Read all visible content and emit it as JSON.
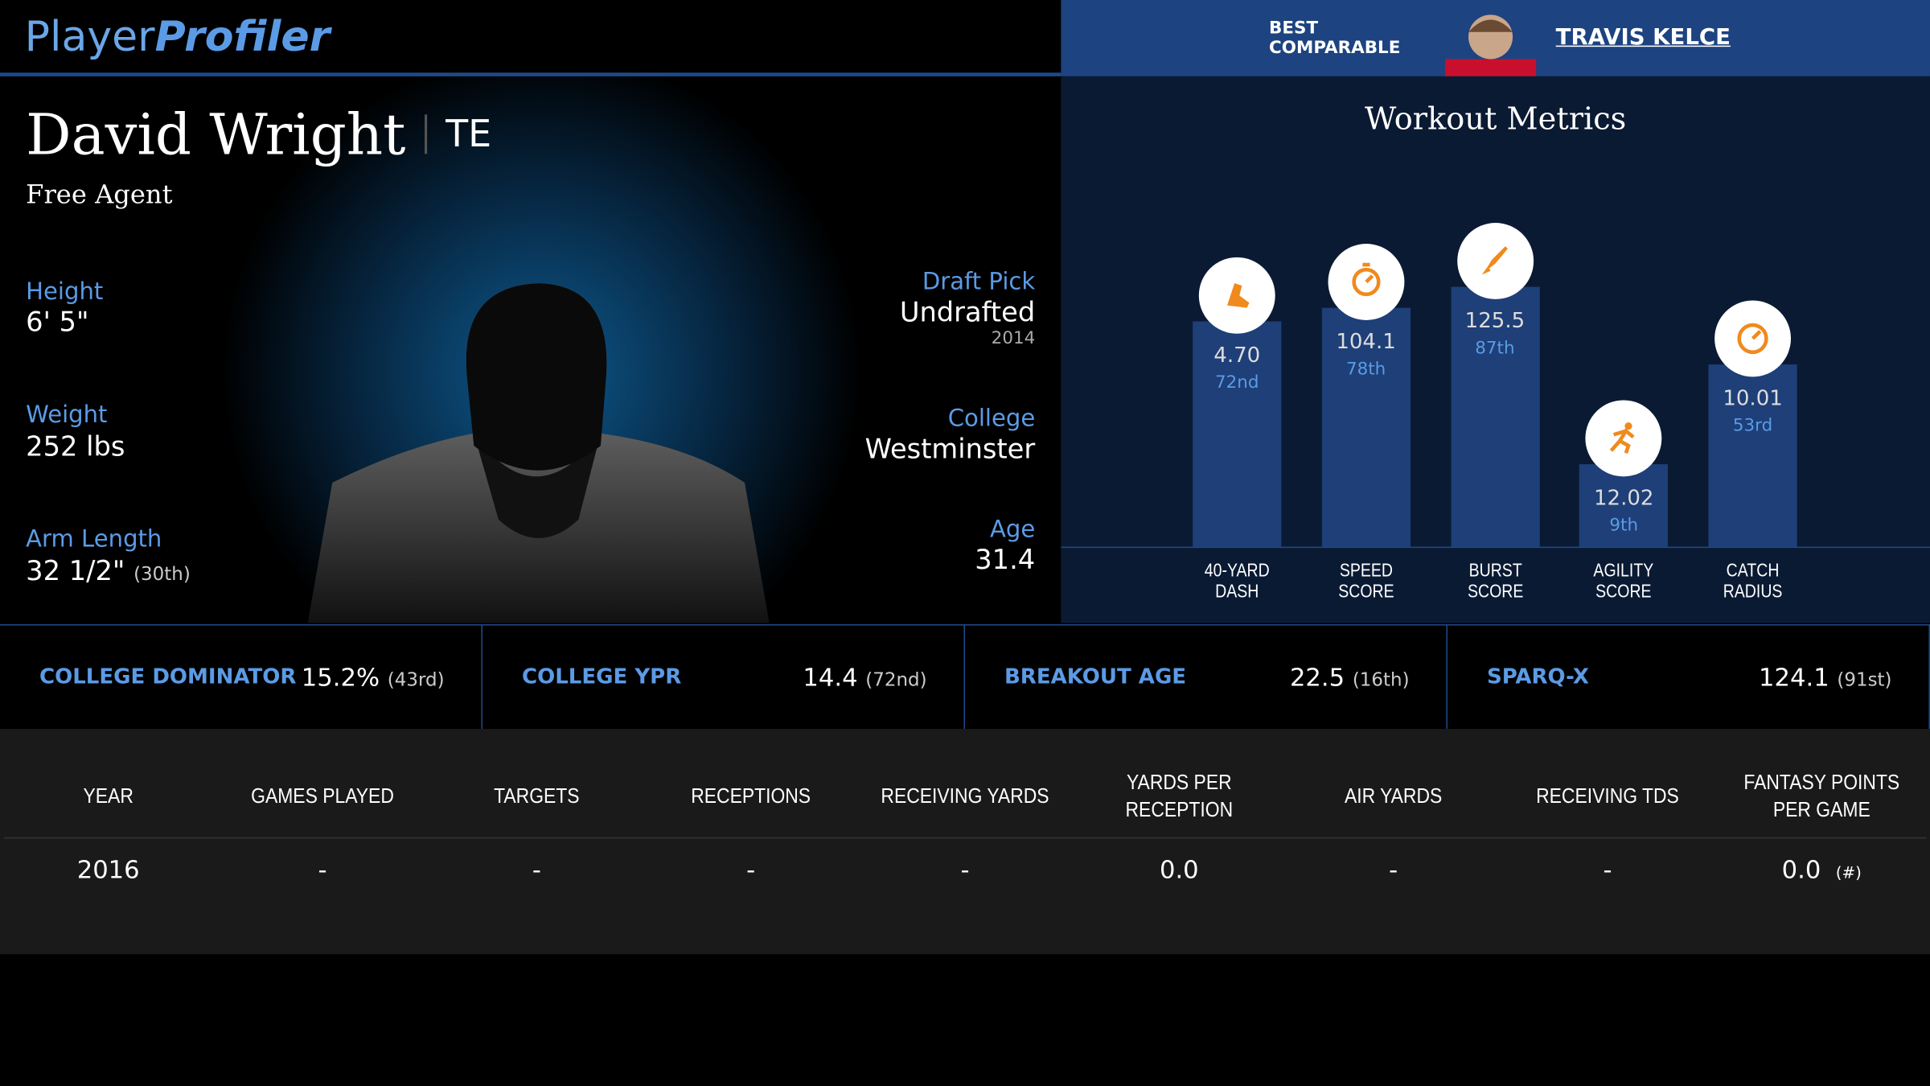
{
  "header": {
    "logo_a": "Player",
    "logo_b": "Profiler",
    "best_comparable_label": "BEST COMPARABLE",
    "best_comparable_name": "TRAVIS KELCE"
  },
  "player": {
    "name": "David Wright",
    "position": "TE",
    "status": "Free Agent"
  },
  "left_stats": [
    {
      "label": "Height",
      "value": "6' 5\""
    },
    {
      "label": "Weight",
      "value": "252 lbs"
    },
    {
      "label": "Arm Length",
      "value": "32 1/2\"",
      "rank": "(30th)"
    }
  ],
  "right_stats": [
    {
      "label": "Draft Pick",
      "value": "Undrafted",
      "sub": "2014"
    },
    {
      "label": "College",
      "value": "Westminster"
    },
    {
      "label": "Age",
      "value": "31.4"
    }
  ],
  "workout_metrics": {
    "title": "Workout Metrics",
    "items": [
      {
        "label": "40-YARD DASH",
        "value": "4.70",
        "percentile": 72,
        "percentile_label": "72nd"
      },
      {
        "label": "SPEED SCORE",
        "value": "104.1",
        "percentile": 78,
        "percentile_label": "78th"
      },
      {
        "label": "BURST SCORE",
        "value": "125.5",
        "percentile": 87,
        "percentile_label": "87th"
      },
      {
        "label": "AGILITY SCORE",
        "value": "12.02",
        "percentile": 9,
        "percentile_label": "9th"
      },
      {
        "label": "CATCH RADIUS",
        "value": "10.01",
        "percentile": 53,
        "percentile_label": "53rd"
      }
    ]
  },
  "key_metrics": [
    {
      "label": "COLLEGE DOMINATOR",
      "value": "15.2%",
      "rank": "(43rd)"
    },
    {
      "label": "COLLEGE YPR",
      "value": "14.4",
      "rank": "(72nd)"
    },
    {
      "label": "BREAKOUT AGE",
      "value": "22.5",
      "rank": "(16th)"
    },
    {
      "label": "SPARQ-X",
      "value": "124.1",
      "rank": "(91st)"
    }
  ],
  "table": {
    "columns": [
      "YEAR",
      "GAMES PLAYED",
      "TARGETS",
      "RECEPTIONS",
      "RECEIVING YARDS",
      "YARDS PER RECEPTION",
      "AIR YARDS",
      "RECEIVING TDS",
      "FANTASY POINTS PER GAME"
    ],
    "rows": [
      [
        "2016",
        "-",
        "-",
        "-",
        "-",
        "0.0",
        "-",
        "-",
        "0.0"
      ]
    ],
    "note": "(#)"
  }
}
